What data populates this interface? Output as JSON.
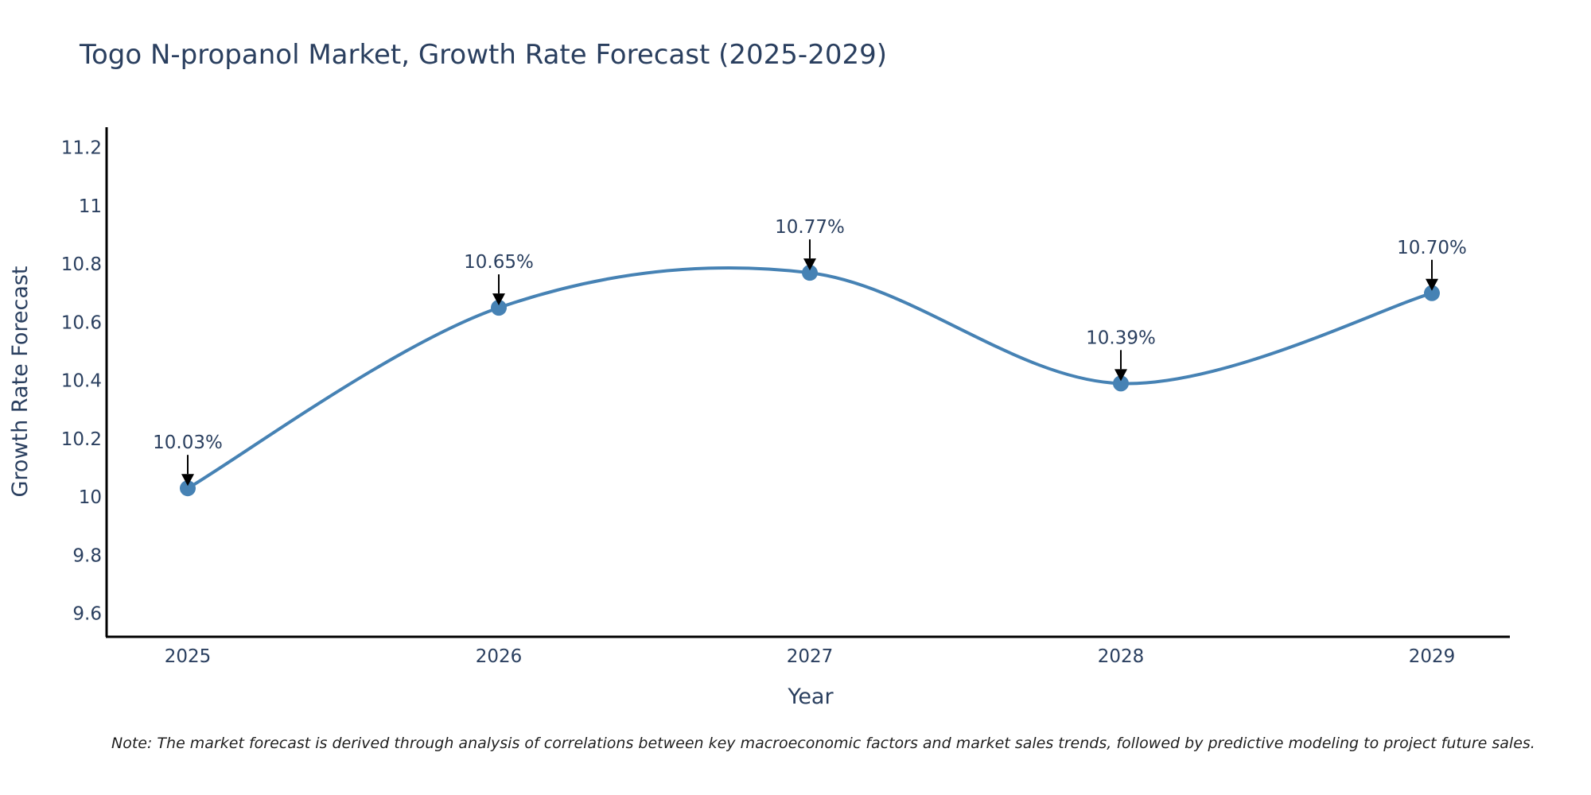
{
  "chart_data": {
    "type": "line",
    "title": "Togo N-propanol Market, Growth Rate Forecast (2025-2029)",
    "xlabel": "Year",
    "ylabel": "Growth Rate Forecast",
    "categories": [
      "2025",
      "2026",
      "2027",
      "2028",
      "2029"
    ],
    "values": [
      10.03,
      10.65,
      10.77,
      10.39,
      10.7
    ],
    "data_labels": [
      "10.03%",
      "10.65%",
      "10.77%",
      "10.39%",
      "10.70%"
    ],
    "ylim": [
      9.52,
      11.27
    ],
    "yticks": [
      9.6,
      9.8,
      10,
      10.2,
      10.4,
      10.6,
      10.8,
      11,
      11.2
    ],
    "ytick_labels": [
      "9.6",
      "9.8",
      "10",
      "10.2",
      "10.4",
      "10.6",
      "10.8",
      "11",
      "11.2"
    ],
    "grid": false,
    "line_shape": "spline",
    "note": "Note: The market forecast is derived through analysis of correlations between key macroeconomic factors and market sales trends, followed by predictive modeling to project future sales."
  },
  "colors": {
    "series": "#4682B4",
    "text": "#2a3f5f",
    "axis": "#000000",
    "arrow": "#000000"
  }
}
